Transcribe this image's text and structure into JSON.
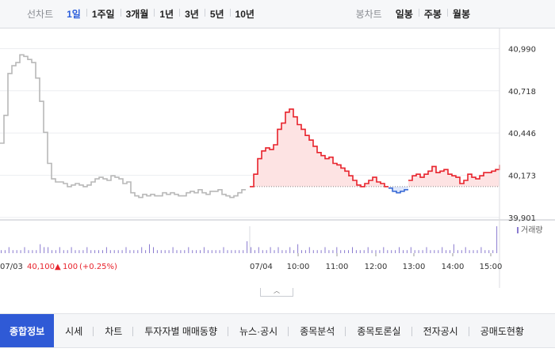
{
  "toolbar": {
    "line_label": "선차트",
    "line_periods": [
      "1일",
      "1주일",
      "3개월",
      "1년",
      "3년",
      "5년",
      "10년"
    ],
    "selected_period": "1일",
    "candle_label": "봉차트",
    "candle_periods": [
      "일봉",
      "주봉",
      "월봉"
    ]
  },
  "colors": {
    "up": "#e8222b",
    "down": "#3a6bd6",
    "prev_day": "#b8b8b8",
    "up_fill": "#fde3e3",
    "down_fill": "#dfe8fb",
    "volume": "#8a7bd0",
    "active_tab": "#2f5ad6"
  },
  "prev_day": {
    "date": "07/03",
    "price": "40,100",
    "change_symbol": "▲",
    "change": "100",
    "change_pct": "(+0.25%)"
  },
  "chart_data": {
    "type": "line",
    "y_ticks": [
      "40,990",
      "40,718",
      "40,446",
      "40,173",
      "39,901"
    ],
    "y_tick_values": [
      40990,
      40718,
      40446,
      40173,
      39901
    ],
    "ylim": [
      39885,
      41110
    ],
    "baseline": 40100,
    "volume_label": "거래량",
    "day_labels": [
      "07/03",
      "07/04"
    ],
    "x_ticks": [
      "10:00",
      "11:00",
      "12:00",
      "13:00",
      "14:00",
      "15:00"
    ],
    "series": [
      {
        "x": [
          0,
          5,
          10,
          15,
          20,
          25,
          30,
          35,
          40,
          45,
          50,
          55,
          60,
          65,
          70,
          75,
          80,
          85,
          90,
          95,
          100,
          105,
          110,
          115,
          120,
          125,
          130,
          135,
          140,
          145,
          150,
          155,
          160,
          165,
          170,
          175,
          180,
          185,
          190,
          195,
          200,
          205,
          210,
          215,
          220,
          225,
          230,
          235,
          240,
          245,
          250,
          255,
          260,
          265,
          270,
          275,
          280,
          285,
          290,
          295,
          300,
          305,
          310
        ],
        "y": [
          40380,
          40560,
          40830,
          40880,
          40900,
          40950,
          40940,
          40920,
          40900,
          40800,
          40650,
          40450,
          40250,
          40150,
          40130,
          40130,
          40120,
          40100,
          40110,
          40120,
          40110,
          40100,
          40110,
          40130,
          40150,
          40160,
          40150,
          40140,
          40170,
          40160,
          40150,
          40120,
          40130,
          40060,
          40040,
          40030,
          40050,
          40040,
          40050,
          40040,
          40040,
          40060,
          40050,
          40060,
          40050,
          40040,
          40040,
          40060,
          40070,
          40060,
          40080,
          40060,
          40050,
          40070,
          40070,
          40080,
          40050,
          40040,
          40030,
          40040,
          40060,
          40080,
          40080
        ]
      },
      {
        "x": [
          315,
          320,
          325,
          330,
          335,
          340,
          345,
          350,
          355,
          360,
          365,
          370,
          375,
          380,
          385,
          390,
          395,
          400,
          405,
          410,
          415,
          420,
          425,
          430,
          435,
          440,
          445,
          450,
          455,
          460,
          465,
          470,
          475,
          480,
          485,
          490,
          495,
          500,
          505,
          510,
          515,
          520,
          525,
          530,
          535,
          540,
          545,
          550,
          555,
          560,
          565,
          570,
          575,
          580,
          585,
          590,
          595,
          600,
          605,
          610,
          615,
          620,
          625,
          630
        ],
        "y": [
          40100,
          40180,
          40280,
          40330,
          40350,
          40340,
          40370,
          40470,
          40510,
          40580,
          40600,
          40550,
          40500,
          40470,
          40430,
          40400,
          40360,
          40320,
          40300,
          40280,
          40290,
          40250,
          40240,
          40220,
          40200,
          40170,
          40140,
          40110,
          40100,
          40120,
          40140,
          40160,
          40130,
          40120,
          40100,
          40090,
          40070,
          40060,
          40070,
          40080,
          40140,
          40170,
          40180,
          40160,
          40180,
          40200,
          40230,
          40190,
          40200,
          40210,
          40180,
          40170,
          40160,
          40120,
          40140,
          40180,
          40160,
          40150,
          40170,
          40190,
          40190,
          40200,
          40210,
          40240
        ]
      }
    ],
    "volume": [
      1,
      1,
      2,
      1,
      1,
      1,
      2,
      1,
      1,
      1,
      3,
      2,
      2,
      1,
      1,
      2,
      1,
      1,
      2,
      1,
      1,
      1,
      2,
      1,
      1,
      1,
      1,
      2,
      1,
      1,
      1,
      1,
      2,
      1,
      1,
      1,
      2,
      1,
      3,
      2,
      1,
      1,
      1,
      1,
      2,
      1,
      1,
      1,
      2,
      1,
      1,
      1,
      2,
      1,
      1,
      1,
      1,
      2,
      1,
      1,
      1,
      1,
      1,
      4,
      2,
      1,
      2,
      1,
      1,
      2,
      1,
      2,
      1,
      1,
      2,
      1,
      3,
      1,
      1,
      2,
      1,
      1,
      1,
      2,
      1,
      1,
      2,
      1,
      1,
      1,
      2,
      1,
      1,
      1,
      2,
      1,
      1,
      1,
      2,
      1,
      1,
      1,
      2,
      1,
      1,
      2,
      1,
      1,
      1,
      2,
      1,
      1,
      1,
      2,
      1,
      1,
      3,
      1,
      1,
      2,
      1,
      1,
      1,
      2,
      1,
      1,
      1,
      9
    ]
  },
  "tabs": [
    "종합정보",
    "시세",
    "차트",
    "투자자별 매매동향",
    "뉴스·공시",
    "종목분석",
    "종목토론실",
    "전자공시",
    "공매도현황"
  ],
  "active_tab": "종합정보",
  "collapse_glyph": "︿"
}
